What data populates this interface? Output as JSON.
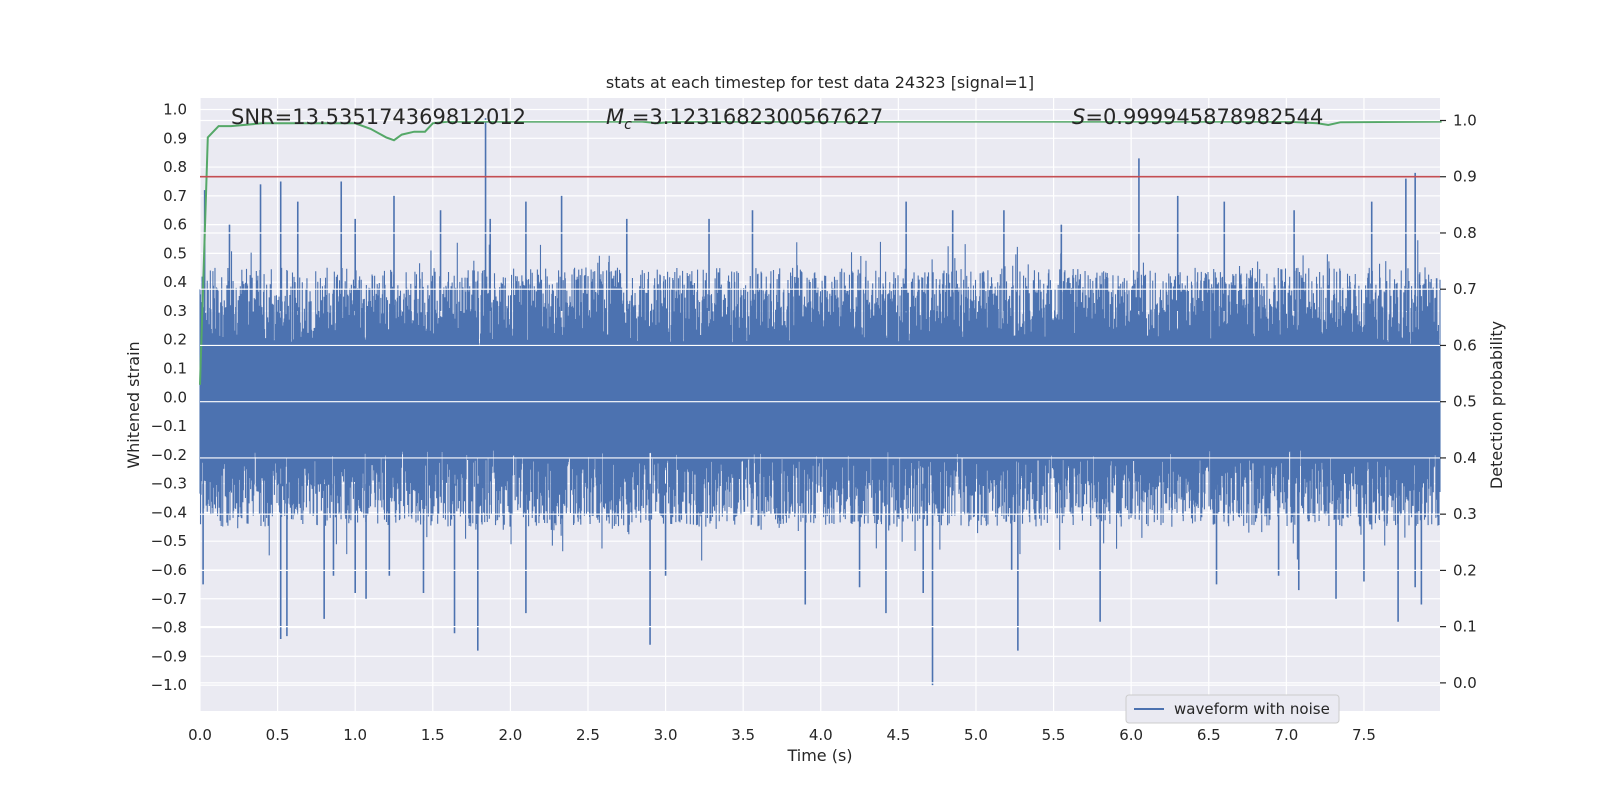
{
  "chart_data": {
    "type": "line",
    "title": "stats at each timestep for test data 24323 [signal=1]",
    "xlabel": "Time (s)",
    "ylabel_left": "Whitened strain",
    "ylabel_right": "Detection probability",
    "xlim": [
      0.0,
      7.99
    ],
    "ylim_left": [
      -1.09,
      1.04
    ],
    "ylim_right": [
      -0.05,
      1.04
    ],
    "xticks": [
      "0.0",
      "0.5",
      "1.0",
      "1.5",
      "2.0",
      "2.5",
      "3.0",
      "3.5",
      "4.0",
      "4.5",
      "5.0",
      "5.5",
      "6.0",
      "6.5",
      "7.0",
      "7.5"
    ],
    "xtick_values": [
      0.0,
      0.5,
      1.0,
      1.5,
      2.0,
      2.5,
      3.0,
      3.5,
      4.0,
      4.5,
      5.0,
      5.5,
      6.0,
      6.5,
      7.0,
      7.5
    ],
    "yticks_left": [
      "1.0",
      "0.9",
      "0.8",
      "0.7",
      "0.6",
      "0.5",
      "0.4",
      "0.3",
      "0.2",
      "0.1",
      "0.0",
      "−0.1",
      "−0.2",
      "−0.3",
      "−0.4",
      "−0.5",
      "−0.6",
      "−0.7",
      "−0.8",
      "−0.9",
      "−1.0"
    ],
    "ytick_values_left": [
      1.0,
      0.9,
      0.8,
      0.7,
      0.6,
      0.5,
      0.4,
      0.3,
      0.2,
      0.1,
      0.0,
      -0.1,
      -0.2,
      -0.3,
      -0.4,
      -0.5,
      -0.6,
      -0.7,
      -0.8,
      -0.9,
      -1.0
    ],
    "yticks_right": [
      "1.0",
      "0.9",
      "0.8",
      "0.7",
      "0.6",
      "0.5",
      "0.4",
      "0.3",
      "0.2",
      "0.1",
      "0.0"
    ],
    "ytick_values_right": [
      1.0,
      0.9,
      0.8,
      0.7,
      0.6,
      0.5,
      0.4,
      0.3,
      0.2,
      0.1,
      0.0
    ],
    "annotations": {
      "snr": "SNR=13.535174369812012",
      "mc_symbol": "M",
      "mc_subscript": "c",
      "mc_value": "=3.1231682300567627",
      "s_symbol": "S",
      "s_value": "=0.999945878982544"
    },
    "legend": {
      "label": "waveform with noise",
      "location": "lower-right"
    },
    "threshold": {
      "axis": "right",
      "value": 0.9
    },
    "waveform_envelope": {
      "typical_max": 0.45,
      "typical_min": -0.45,
      "positive_spikes": [
        [
          0.03,
          0.72
        ],
        [
          0.19,
          0.6
        ],
        [
          0.39,
          0.74
        ],
        [
          0.52,
          0.75
        ],
        [
          0.63,
          0.68
        ],
        [
          0.91,
          0.75
        ],
        [
          1.0,
          0.62
        ],
        [
          1.25,
          0.7
        ],
        [
          1.55,
          0.65
        ],
        [
          1.84,
          0.97
        ],
        [
          1.87,
          0.62
        ],
        [
          2.1,
          0.68
        ],
        [
          2.33,
          0.7
        ],
        [
          2.75,
          0.62
        ],
        [
          3.28,
          0.62
        ],
        [
          3.56,
          0.65
        ],
        [
          4.55,
          0.68
        ],
        [
          4.85,
          0.65
        ],
        [
          5.18,
          0.65
        ],
        [
          5.55,
          0.6
        ],
        [
          6.05,
          0.83
        ],
        [
          6.3,
          0.7
        ],
        [
          6.6,
          0.68
        ],
        [
          7.05,
          0.65
        ],
        [
          7.55,
          0.68
        ],
        [
          7.77,
          0.76
        ],
        [
          7.83,
          0.78
        ]
      ],
      "negative_spikes": [
        [
          0.02,
          -0.65
        ],
        [
          0.52,
          -0.84
        ],
        [
          0.56,
          -0.83
        ],
        [
          0.8,
          -0.77
        ],
        [
          0.86,
          -0.62
        ],
        [
          1.0,
          -0.68
        ],
        [
          1.07,
          -0.7
        ],
        [
          1.22,
          -0.62
        ],
        [
          1.44,
          -0.68
        ],
        [
          1.64,
          -0.82
        ],
        [
          1.79,
          -0.88
        ],
        [
          2.1,
          -0.75
        ],
        [
          2.9,
          -0.86
        ],
        [
          3.0,
          -0.62
        ],
        [
          3.9,
          -0.72
        ],
        [
          4.25,
          -0.66
        ],
        [
          4.42,
          -0.75
        ],
        [
          4.66,
          -0.68
        ],
        [
          4.72,
          -1.0
        ],
        [
          5.23,
          -0.6
        ],
        [
          5.27,
          -0.88
        ],
        [
          5.8,
          -0.78
        ],
        [
          6.55,
          -0.65
        ],
        [
          6.95,
          -0.62
        ],
        [
          7.08,
          -0.67
        ],
        [
          7.32,
          -0.7
        ],
        [
          7.5,
          -0.64
        ],
        [
          7.72,
          -0.78
        ],
        [
          7.83,
          -0.66
        ],
        [
          7.87,
          -0.72
        ]
      ]
    },
    "series": [
      {
        "name": "Detection probability",
        "color": "#55a868",
        "axis": "right",
        "x": [
          0.0,
          0.05,
          0.12,
          0.2,
          0.4,
          0.6,
          0.8,
          1.0,
          1.1,
          1.2,
          1.25,
          1.3,
          1.38,
          1.45,
          1.5,
          1.6,
          2.0,
          2.5,
          2.85,
          2.95,
          3.05,
          3.5,
          4.0,
          5.0,
          6.0,
          7.0,
          7.2,
          7.27,
          7.35,
          8.0
        ],
        "y": [
          0.53,
          0.97,
          0.99,
          0.99,
          0.995,
          0.995,
          0.995,
          0.995,
          0.985,
          0.97,
          0.965,
          0.975,
          0.98,
          0.98,
          0.995,
          0.998,
          0.998,
          0.998,
          0.998,
          0.995,
          0.998,
          0.998,
          0.998,
          0.998,
          0.998,
          0.998,
          0.995,
          0.992,
          0.997,
          0.998
        ]
      }
    ],
    "colors": {
      "waveform": "#4c72b0",
      "probability": "#55a868",
      "threshold": "#c44e52",
      "plot_bg": "#eaeaf2",
      "grid": "#ffffff"
    }
  }
}
